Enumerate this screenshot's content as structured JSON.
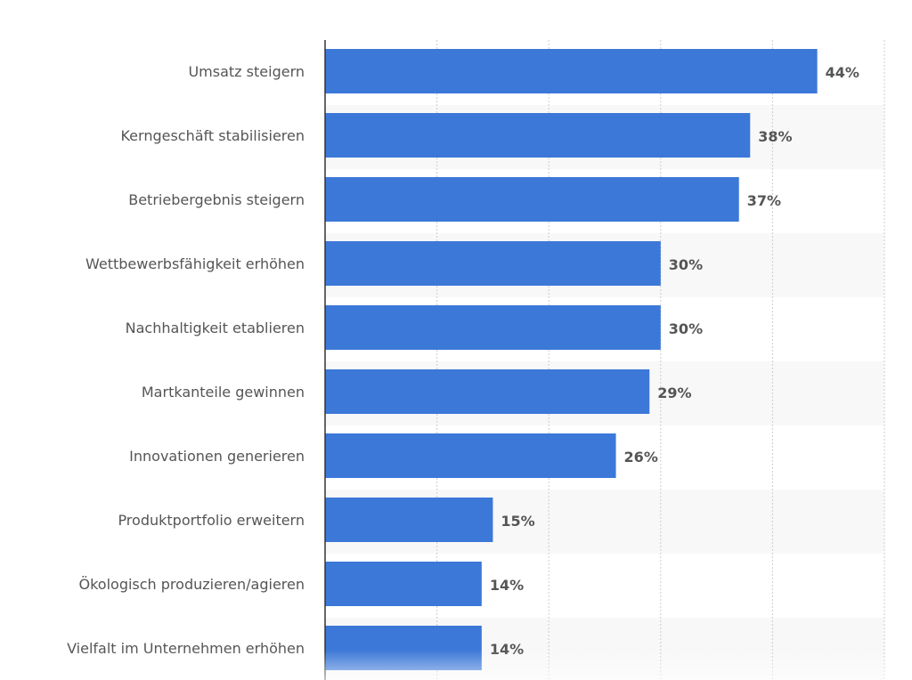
{
  "chart_data": {
    "type": "bar",
    "orientation": "horizontal",
    "categories": [
      "Umsatz steigern",
      "Kerngeschäft stabilisieren",
      "Betriebergebnis steigern",
      "Wettbewerbsfähigkeit erhöhen",
      "Nachhaltigkeit etablieren",
      "Martkanteile gewinnen",
      "Innovationen generieren",
      "Produktportfolio erweitern",
      "Ökologisch produzieren/agieren",
      "Vielfalt im Unternehmen erhöhen"
    ],
    "values": [
      44,
      38,
      37,
      30,
      30,
      29,
      26,
      15,
      14,
      14
    ],
    "value_labels": [
      "44%",
      "38%",
      "37%",
      "30%",
      "30%",
      "29%",
      "26%",
      "15%",
      "14%",
      "14%"
    ],
    "xlim": [
      0,
      50
    ],
    "grid": true,
    "grid_step": 10,
    "bar_color": "#3c78d8",
    "alternate_row_color": "#f8f8f8",
    "label_color": "#555555"
  }
}
